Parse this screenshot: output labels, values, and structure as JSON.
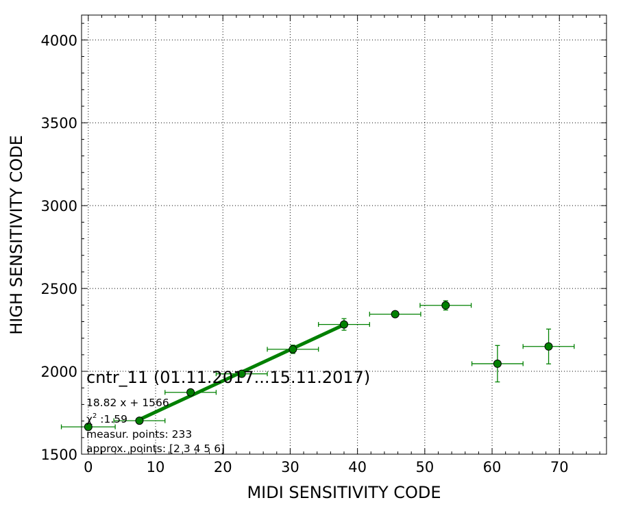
{
  "chart_data": {
    "type": "scatter",
    "xlabel": "MIDI SENSITIVITY CODE",
    "ylabel": "HIGH SENSITIVITY CODE",
    "xlim": [
      -1,
      77
    ],
    "ylim": [
      1500,
      4150
    ],
    "x_ticks": [
      0,
      10,
      20,
      30,
      40,
      50,
      60,
      70
    ],
    "y_ticks": [
      1500,
      2000,
      2500,
      3000,
      3500,
      4000
    ],
    "x_tick_labels": [
      "0",
      "10",
      "20",
      "30",
      "40",
      "50",
      "60",
      "70"
    ],
    "y_tick_labels": [
      "1500",
      "2000",
      "2500",
      "3000",
      "3500",
      "4000"
    ],
    "grid": true,
    "colors": {
      "series": "#008000",
      "marker_edge": "#000000"
    },
    "points": [
      {
        "x": 0.0,
        "y": 1665,
        "xerr": 4.0,
        "yerr": 20
      },
      {
        "x": 7.6,
        "y": 1702,
        "xerr": 3.8,
        "yerr": 15
      },
      {
        "x": 15.2,
        "y": 1873,
        "xerr": 3.8,
        "yerr": 12
      },
      {
        "x": 22.8,
        "y": 1985,
        "xerr": 3.8,
        "yerr": 12
      },
      {
        "x": 30.4,
        "y": 2133,
        "xerr": 3.8,
        "yerr": 25
      },
      {
        "x": 38.0,
        "y": 2283,
        "xerr": 3.8,
        "yerr": 35
      },
      {
        "x": 45.6,
        "y": 2345,
        "xerr": 3.8,
        "yerr": 12
      },
      {
        "x": 53.1,
        "y": 2398,
        "xerr": 3.8,
        "yerr": 28
      },
      {
        "x": 60.8,
        "y": 2046,
        "xerr": 3.8,
        "yerr": 110
      },
      {
        "x": 68.4,
        "y": 2150,
        "xerr": 3.8,
        "yerr": 105
      }
    ],
    "fit_line": {
      "slope": 18.82,
      "intercept": 1566,
      "x_range": [
        7.6,
        38.0
      ]
    },
    "annotations": {
      "title": "cntr_11 (01.11.2017...15.11.2017)",
      "equation": "18.82 x + 1566",
      "chi2_symbol": "χ",
      "chi2_sup": "2",
      "chi2_value": " :1.59",
      "measur": "measur. points: 233",
      "approx": "approx. points: [2 3 4 5 6]"
    }
  }
}
